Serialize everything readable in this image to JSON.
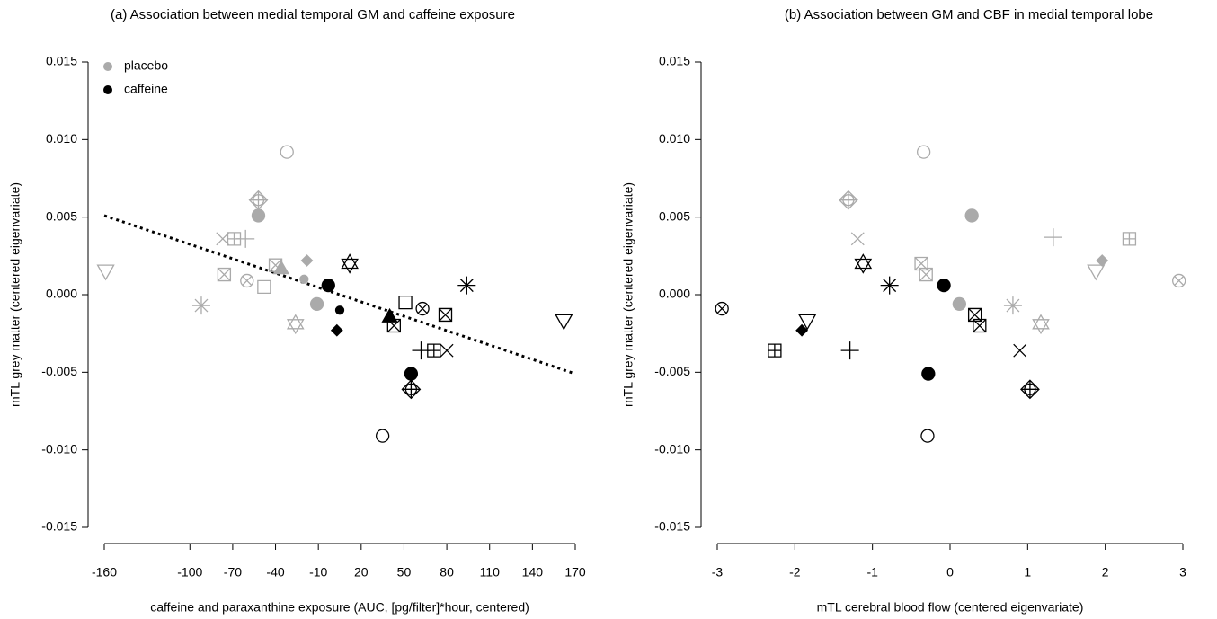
{
  "chart_data": [
    {
      "type": "scatter",
      "title": "(a) Association between medial temporal GM and caffeine exposure",
      "xlabel": "caffeine and paraxanthine exposure (AUC, [pg/filter]*hour, centered)",
      "ylabel": "mTL grey matter (centered eigenvariate)",
      "xlim": [
        -160,
        170
      ],
      "xticks": [
        -160,
        -100,
        -70,
        -40,
        -10,
        20,
        50,
        80,
        110,
        140,
        170
      ],
      "ylim": [
        -0.015,
        0.015
      ],
      "yticks": [
        -0.015,
        {
          "value": -0.01,
          "label": "-0.010"
        },
        -0.005,
        {
          "value": 0,
          "label": "0.000"
        },
        0.005,
        {
          "value": 0.01,
          "label": "0.010"
        },
        0.015
      ],
      "legend": "top-left",
      "series": [
        {
          "name": "placebo",
          "color": "#aaaaaa",
          "x": [
            -159,
            -92,
            -77,
            -69,
            -61,
            -52,
            -52,
            -76,
            -60,
            -48,
            -40,
            -36,
            -18,
            -20,
            -11,
            -26,
            -32
          ],
          "values": [
            0.0015,
            -0.0007,
            0.0036,
            0.0036,
            0.0036,
            0.0061,
            0.0051,
            0.0013,
            0.0009,
            0.0005,
            0.0019,
            0.0017,
            0.0022,
            0.001,
            -0.0006,
            -0.0019,
            0.0092
          ],
          "markers": [
            "triangle-down",
            "asterisk",
            "x",
            "square-plus",
            "plus",
            "diamond-plus",
            "circle-filled",
            "square-x",
            "circle-x",
            "square",
            "square-x",
            "triangle-filled",
            "diamond-filled",
            "circle-small",
            "circle-filled",
            "star",
            "circle-open"
          ]
        },
        {
          "name": "caffeine",
          "color": "#000000",
          "x": [
            -3,
            5,
            3,
            12,
            40,
            43,
            51,
            63,
            79,
            94,
            62,
            71,
            80,
            55,
            55,
            35,
            162
          ],
          "values": [
            0.0006,
            -0.001,
            -0.0023,
            0.002,
            -0.0014,
            -0.002,
            -0.0005,
            -0.0009,
            -0.0013,
            0.0006,
            -0.0036,
            -0.0036,
            -0.0036,
            -0.0051,
            -0.0061,
            -0.0091,
            -0.0017
          ],
          "markers": [
            "circle-filled",
            "circle-small",
            "diamond-filled",
            "star",
            "triangle-filled",
            "square-x",
            "square",
            "circle-x",
            "square-x",
            "asterisk",
            "plus",
            "square-plus",
            "x",
            "circle-filled",
            "diamond-plus",
            "circle-open",
            "triangle-down"
          ]
        }
      ],
      "fit": {
        "color": "#000000",
        "x": [
          -160,
          170
        ],
        "values": [
          0.0051,
          -0.0051
        ]
      }
    },
    {
      "type": "scatter",
      "title": "(b) Association between GM and CBF in medial temporal lobe",
      "xlabel": "mTL cerebral blood flow (centered eigenvariate)",
      "ylabel": "mTL grey matter (centered eigenvariate)",
      "xlim": [
        -3,
        3
      ],
      "xticks": [
        -3,
        -2,
        -1,
        0,
        1,
        2,
        3
      ],
      "ylim": [
        -0.015,
        0.015
      ],
      "yticks": [
        -0.015,
        {
          "value": -0.01,
          "label": "-0.010"
        },
        -0.005,
        {
          "value": 0,
          "label": "0.000"
        },
        0.005,
        {
          "value": 0.01,
          "label": "0.010"
        },
        0.015
      ],
      "series": [
        {
          "color": "#aaaaaa",
          "x": [
            -0.34,
            -1.31,
            -1.19,
            1.17,
            -0.37,
            -0.31,
            0.28,
            0.12,
            0.81,
            1.33,
            2.31,
            1.96,
            1.88,
            2.95
          ],
          "values": [
            0.0092,
            0.0061,
            0.0036,
            -0.0019,
            0.002,
            0.0013,
            0.0051,
            -0.0006,
            -0.0007,
            0.0037,
            0.0036,
            0.0022,
            0.0015,
            0.0009
          ],
          "markers": [
            "circle-open",
            "diamond-plus",
            "x",
            "star",
            "square-x",
            "square-x",
            "circle-filled",
            "circle-filled",
            "asterisk",
            "plus",
            "square-plus",
            "diamond-filled",
            "triangle-down",
            "circle-x"
          ]
        },
        {
          "color": "#000000",
          "x": [
            -2.94,
            -2.26,
            -1.91,
            -1.84,
            -1.29,
            -1.12,
            -0.78,
            -0.28,
            -0.08,
            0.32,
            0.38,
            0.9,
            1.03,
            -0.29
          ],
          "values": [
            -0.0009,
            -0.0036,
            -0.0023,
            -0.0017,
            -0.0036,
            0.002,
            0.0006,
            -0.0051,
            0.0006,
            -0.0013,
            -0.002,
            -0.0036,
            -0.0061,
            -0.0091
          ],
          "markers": [
            "circle-x",
            "square-plus",
            "diamond-filled",
            "triangle-down",
            "plus",
            "star",
            "asterisk",
            "circle-filled",
            "circle-filled",
            "square-x",
            "square-x",
            "x",
            "diamond-plus",
            "circle-open"
          ]
        }
      ]
    }
  ]
}
